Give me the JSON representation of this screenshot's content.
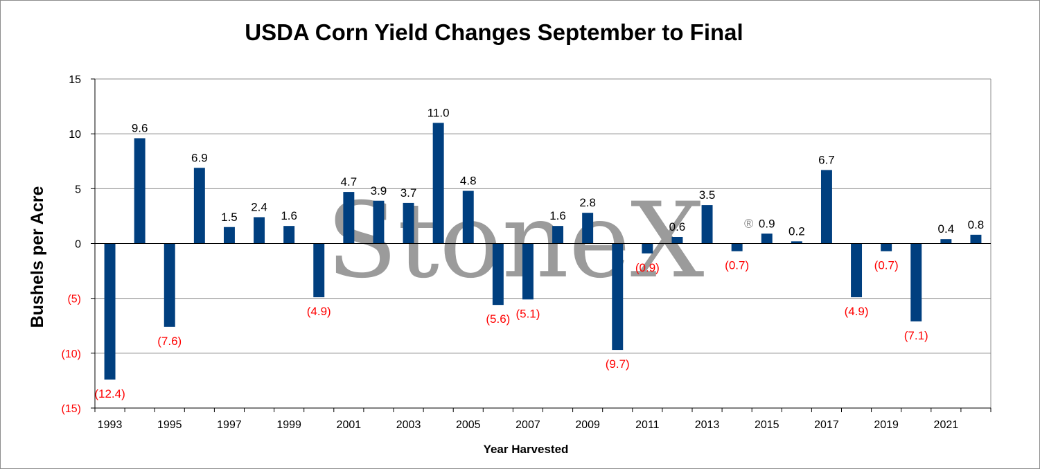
{
  "chart_data": {
    "type": "bar",
    "title": "USDA Corn Yield Changes September to Final",
    "xlabel": "Year Harvested",
    "ylabel": "Bushels per Acre",
    "ylim": [
      -15,
      15
    ],
    "yticks": [
      15,
      10,
      5,
      0,
      -5,
      -10,
      -15
    ],
    "ytick_labels": [
      "15",
      "10",
      "5",
      "0",
      "(5)",
      "(10)",
      "(15)"
    ],
    "grid": true,
    "categories": [
      "1993",
      "1994",
      "1995",
      "1996",
      "1997",
      "1998",
      "1999",
      "2000",
      "2001",
      "2002",
      "2003",
      "2004",
      "2005",
      "2006",
      "2007",
      "2008",
      "2009",
      "2010",
      "2011",
      "2012",
      "2013",
      "2014",
      "2015",
      "2016",
      "2017",
      "2018",
      "2019",
      "2020",
      "2021",
      "2022"
    ],
    "xtick_labels": [
      "1993",
      "",
      "1995",
      "",
      "1997",
      "",
      "1999",
      "",
      "2001",
      "",
      "2003",
      "",
      "2005",
      "",
      "2007",
      "",
      "2009",
      "",
      "2011",
      "",
      "2013",
      "",
      "2015",
      "",
      "2017",
      "",
      "2019",
      "",
      "2021",
      ""
    ],
    "values": [
      -12.4,
      9.6,
      -7.6,
      6.9,
      1.5,
      2.4,
      1.6,
      -4.9,
      4.7,
      3.9,
      3.7,
      11.0,
      4.8,
      -5.6,
      -5.1,
      1.6,
      2.8,
      -9.7,
      -0.9,
      0.6,
      3.5,
      -0.7,
      0.9,
      0.2,
      6.7,
      -4.9,
      -0.7,
      -7.1,
      0.4,
      0.8
    ],
    "value_labels": [
      "(12.4)",
      "9.6",
      "(7.6)",
      "6.9",
      "1.5",
      "2.4",
      "1.6",
      "(4.9)",
      "4.7",
      "3.9",
      "3.7",
      "11.0",
      "4.8",
      "(5.6)",
      "(5.1)",
      "1.6",
      "2.8",
      "(9.7)",
      "(0.9)",
      "0.6",
      "3.5",
      "(0.7)",
      "0.9",
      "0.2",
      "6.7",
      "(4.9)",
      "(0.7)",
      "(7.1)",
      "0.4",
      "0.8"
    ],
    "colors": {
      "bar": "#003f7f",
      "positive_label": "#000000",
      "negative_label": "#ff0000",
      "grid": "#8c8c8c"
    }
  },
  "watermark": {
    "text": "StoneX",
    "mark": "®"
  }
}
